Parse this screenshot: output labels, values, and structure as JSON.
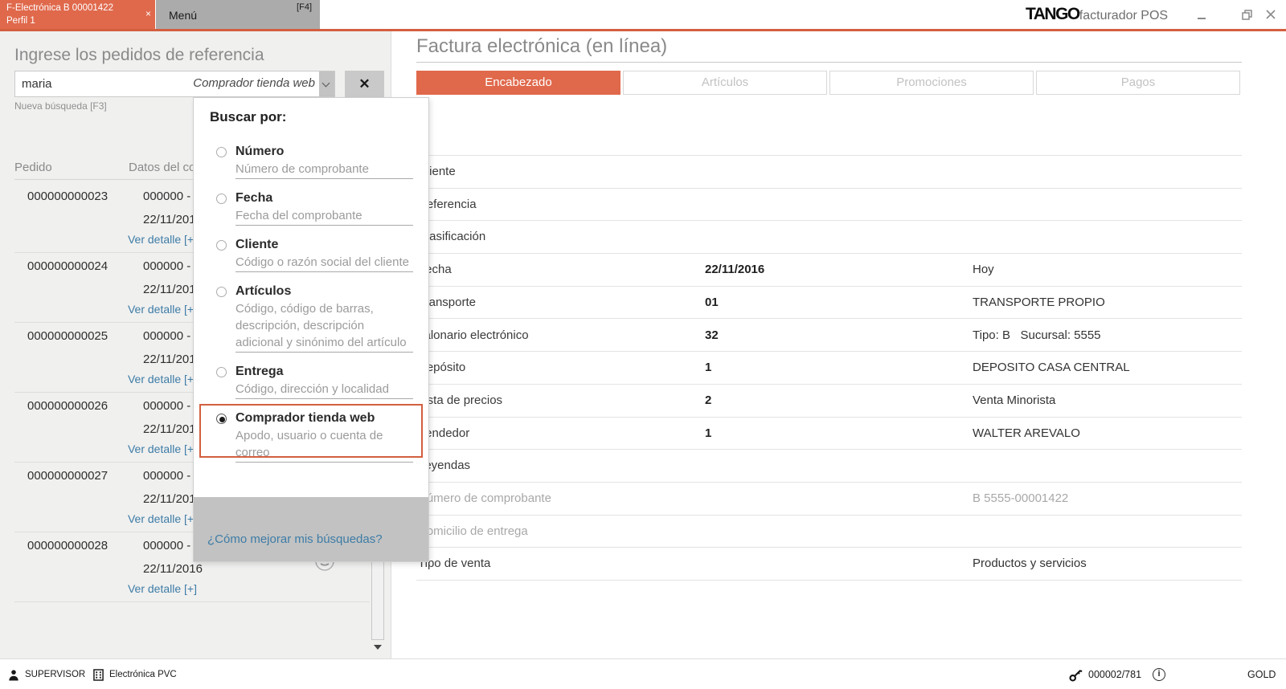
{
  "colors": {
    "accent": "#e0694c",
    "accent_dark": "#d35f3f",
    "link_blue": "#3d7ca6",
    "muted_gray": "#a8a8a8"
  },
  "header": {
    "invoice_tab": {
      "line1": "F-Electrónica B 00001422",
      "line2": "Perfil 1",
      "close_glyph": "×"
    },
    "menu_tab": {
      "label": "Menú",
      "shortcut": "[F4]"
    },
    "brand": {
      "logo": "TANGO",
      "suffix": "facturador POS"
    }
  },
  "left_panel": {
    "heading": "Ingrese los pedidos de referencia",
    "search": {
      "value": "maria",
      "filter_label": "Comprador tienda web",
      "clear_glyph": "✕"
    },
    "hint": "Nueva búsqueda [F3]",
    "columns": {
      "pedido": "Pedido",
      "datos": "Datos del comprador"
    },
    "orders": [
      {
        "pedido": "000000000023",
        "datos": "000000 -",
        "fecha": "22/11/2016",
        "detail": "Ver detalle [+]"
      },
      {
        "pedido": "000000000024",
        "datos": "000000 -",
        "fecha": "22/11/2016",
        "detail": "Ver detalle [+]"
      },
      {
        "pedido": "000000000025",
        "datos": "000000 -",
        "fecha": "22/11/2016",
        "detail": "Ver detalle [+]"
      },
      {
        "pedido": "000000000026",
        "datos": "000000 -",
        "fecha": "22/11/2016",
        "detail": "Ver detalle [+]"
      },
      {
        "pedido": "000000000027",
        "datos": "000000 -",
        "fecha": "22/11/2016",
        "detail": "Ver detalle [+]"
      },
      {
        "pedido": "000000000028",
        "datos": "000000 -",
        "fecha": "22/11/2016",
        "detail": "Ver detalle [+]"
      }
    ]
  },
  "search_dropdown": {
    "title": "Buscar por:",
    "options": [
      {
        "name": "Número",
        "desc": "Número de comprobante",
        "selected": false
      },
      {
        "name": "Fecha",
        "desc": "Fecha del comprobante",
        "selected": false
      },
      {
        "name": "Cliente",
        "desc": "Código o razón social del cliente",
        "selected": false
      },
      {
        "name": "Artículos",
        "desc": "Código, código de barras, descripción, descripción adicional y sinónimo del artículo",
        "selected": false
      },
      {
        "name": "Entrega",
        "desc": "Código, dirección y localidad",
        "selected": false
      },
      {
        "name": "Comprador tienda web",
        "desc": "Apodo, usuario o cuenta de correo",
        "selected": true
      }
    ],
    "help_link": "¿Cómo mejorar mis búsquedas?"
  },
  "invoice_panel": {
    "title": "Factura electrónica (en línea)",
    "tabs": [
      {
        "label": "Encabezado",
        "active": true
      },
      {
        "label": "Artículos",
        "active": false
      },
      {
        "label": "Promociones",
        "active": false
      },
      {
        "label": "Pagos",
        "active": false
      }
    ],
    "rows": [
      {
        "label": "Cliente",
        "value": "",
        "extra": "",
        "muted": false
      },
      {
        "label": "Referencia",
        "value": "",
        "extra": "",
        "muted": false
      },
      {
        "label": "Clasificación",
        "value": "",
        "extra": "",
        "muted": false
      },
      {
        "label": "Fecha",
        "value": "22/11/2016",
        "extra": "Hoy",
        "muted": false
      },
      {
        "label": "Transporte",
        "value": "01",
        "extra": "TRANSPORTE PROPIO",
        "muted": false
      },
      {
        "label": "Talonario electrónico",
        "value": "32",
        "extra": "Tipo: B   Sucursal: 5555",
        "muted": false
      },
      {
        "label": "Depósito",
        "value": "1",
        "extra": "DEPOSITO CASA CENTRAL",
        "muted": false
      },
      {
        "label": "Lista de precios",
        "value": "2",
        "extra": "Venta Minorista",
        "muted": false
      },
      {
        "label": "Vendedor",
        "value": "1",
        "extra": "WALTER AREVALO",
        "muted": false
      },
      {
        "label": "Leyendas",
        "value": "",
        "extra": "",
        "muted": false
      },
      {
        "label": "Número de comprobante",
        "value": "",
        "extra": "B 5555-00001422",
        "muted": true
      },
      {
        "label": "Domicilio de entrega",
        "value": "",
        "extra": "",
        "muted": true
      },
      {
        "label": "Tipo de venta",
        "value": "",
        "extra": "Productos y servicios",
        "muted": false
      }
    ]
  },
  "status_bar": {
    "user": "SUPERVISOR",
    "company": "Electrónica PVC",
    "terminal": "000002/781",
    "license": "GOLD"
  }
}
